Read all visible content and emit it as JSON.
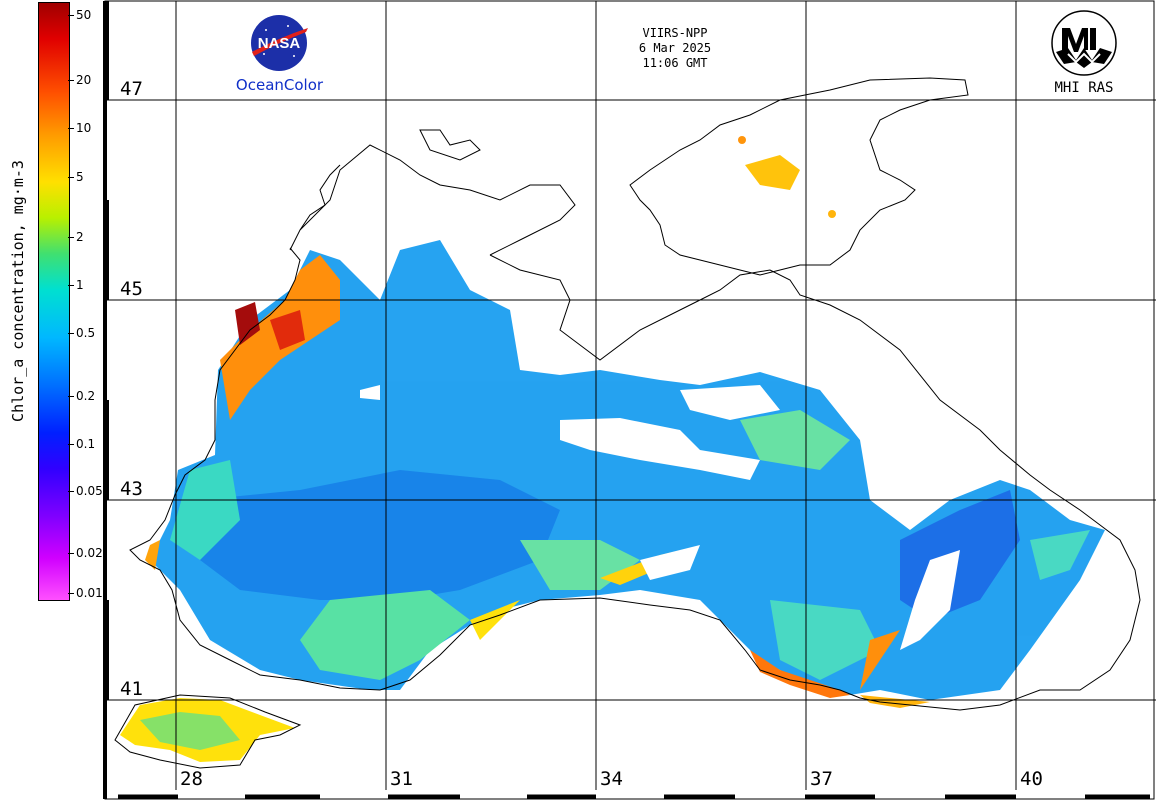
{
  "header": {
    "sensor": "VIIRS-NPP",
    "date": "6 Mar 2025",
    "time": "11:06 GMT"
  },
  "logos": {
    "left_text": "OceanColor",
    "left_badge": "NASA",
    "right_text": "MHI RAS"
  },
  "colorbar": {
    "title": "Chlor_a concentration, mg·m-3",
    "ticks": [
      "50",
      "20",
      "10",
      "5",
      "2",
      "1",
      "0.5",
      "0.2",
      "0.1",
      "0.05",
      "0.02",
      "0.01"
    ],
    "scale": "log",
    "colors": [
      "#a00000",
      "#ff5000",
      "#ffe000",
      "#40e070",
      "#00b8ff",
      "#0020ff",
      "#8000ff",
      "#ff50ff"
    ]
  },
  "grid": {
    "latitudes": [
      "47",
      "45",
      "43",
      "41"
    ],
    "longitudes": [
      "28",
      "31",
      "34",
      "37",
      "40"
    ]
  }
}
